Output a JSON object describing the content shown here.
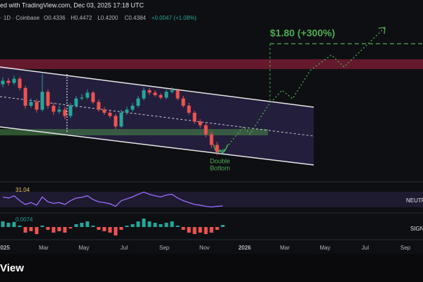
{
  "chart_data": {
    "type": "candlestick",
    "header": "ed with TradingView.com, Dec 03, 2025 17:18 UTC",
    "subheader": "· 1D · Coinbase",
    "ohlc_texts": [
      "O0.4336",
      "H0.4472",
      "L0.4200",
      "C0.4384",
      "+0.0047 (+1.08%)"
    ],
    "annotations": {
      "target": "$1.80 (+300%)",
      "pattern": [
        "Double",
        "Bottom"
      ]
    },
    "log_scale": true,
    "ylim": [
      0.296,
      3.21
    ],
    "up_color": "#26a69a",
    "down_color": "#ef5350",
    "open": [
      1.05,
      1.1,
      1.07,
      1.13,
      1.0,
      0.79,
      0.83,
      0.75,
      0.95,
      0.79,
      0.73,
      0.75,
      0.69,
      0.79,
      0.87,
      0.88,
      0.94,
      0.83,
      0.75,
      0.72,
      0.69,
      0.6,
      0.72,
      0.75,
      0.79,
      0.87,
      0.97,
      0.94,
      0.91,
      0.88,
      0.95,
      0.97,
      0.87,
      0.79,
      0.72,
      0.64,
      0.61,
      0.54,
      0.47,
      0.4336
    ],
    "high": [
      1.15,
      1.14,
      1.18,
      1.16,
      1.03,
      0.87,
      0.86,
      1.2,
      0.98,
      0.82,
      0.79,
      0.78,
      0.82,
      0.9,
      0.92,
      0.98,
      0.96,
      0.86,
      0.78,
      0.75,
      0.71,
      0.75,
      0.78,
      0.82,
      0.9,
      1.01,
      1.0,
      0.97,
      0.93,
      0.98,
      1.01,
      0.99,
      0.9,
      0.82,
      0.74,
      0.66,
      0.63,
      0.56,
      0.49,
      0.4472
    ],
    "low": [
      1.01,
      1.03,
      1.04,
      0.97,
      0.76,
      0.77,
      0.72,
      0.73,
      0.76,
      0.7,
      0.71,
      0.66,
      0.67,
      0.77,
      0.85,
      0.86,
      0.81,
      0.73,
      0.7,
      0.67,
      0.58,
      0.59,
      0.7,
      0.73,
      0.77,
      0.85,
      0.91,
      0.89,
      0.86,
      0.86,
      0.93,
      0.85,
      0.77,
      0.7,
      0.62,
      0.59,
      0.52,
      0.45,
      0.41,
      0.42
    ],
    "close": [
      1.1,
      1.07,
      1.13,
      1.0,
      0.79,
      0.83,
      0.75,
      0.95,
      0.79,
      0.73,
      0.75,
      0.69,
      0.79,
      0.87,
      0.88,
      0.94,
      0.83,
      0.75,
      0.72,
      0.69,
      0.6,
      0.72,
      0.75,
      0.79,
      0.87,
      0.97,
      0.94,
      0.91,
      0.88,
      0.95,
      0.97,
      0.87,
      0.79,
      0.72,
      0.64,
      0.61,
      0.54,
      0.47,
      0.43,
      0.4384
    ],
    "rsi": {
      "color": "#9c6bff",
      "ylim": [
        20,
        80
      ],
      "side_label": "NEUTR",
      "values": [
        55,
        52,
        58,
        45,
        35,
        40,
        33,
        55,
        42,
        38,
        40,
        35,
        45,
        52,
        54,
        58,
        48,
        42,
        40,
        37,
        30,
        45,
        50,
        55,
        62,
        68,
        62,
        58,
        55,
        60,
        62,
        52,
        45,
        40,
        35,
        33,
        30,
        28,
        30,
        31.04
      ]
    },
    "macd": {
      "ylim": [
        -0.04,
        0.04
      ],
      "side_label": "SIGN",
      "values": [
        0.02,
        0.015,
        0.018,
        0.005,
        -0.02,
        -0.015,
        -0.025,
        0.005,
        -0.01,
        -0.02,
        -0.015,
        -0.02,
        -0.005,
        0.01,
        0.015,
        0.02,
        0.005,
        -0.01,
        -0.015,
        -0.02,
        -0.03,
        -0.01,
        0.005,
        0.01,
        0.02,
        0.03,
        0.02,
        0.015,
        0.01,
        0.015,
        0.02,
        0.005,
        -0.01,
        -0.02,
        -0.025,
        -0.02,
        -0.025,
        -0.02,
        -0.01,
        0.0074
      ]
    },
    "x_labels": [
      "2025",
      "Mar",
      "May",
      "Jul",
      "Sep",
      "Nov",
      "2026",
      "Mar",
      "May",
      "Jul",
      "Sep"
    ],
    "footer": "View"
  }
}
